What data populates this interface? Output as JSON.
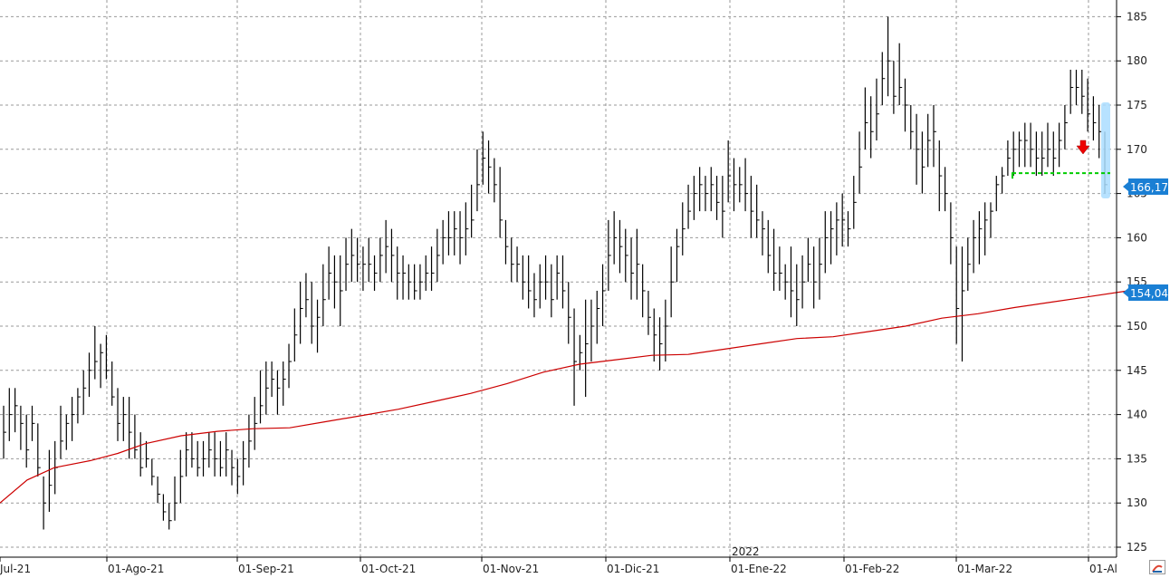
{
  "chart_data": {
    "type": "ohlc",
    "title": "",
    "xlabel": "",
    "ylabel": "",
    "ylim": [
      123.5,
      188
    ],
    "y_ticks": [
      125,
      130,
      135,
      140,
      145,
      150,
      155,
      160,
      165,
      170,
      175,
      180,
      185
    ],
    "x_tick_labels": [
      "-Jul-21",
      "01-Ago-21",
      "01-Sep-21",
      "01-Oct-21",
      "01-Nov-21",
      "01-Dic-21",
      "01-Ene-22",
      "01-Feb-22",
      "01-Mar-22",
      "01-Al"
    ],
    "year_label": "2022",
    "grid": true,
    "price_label": "166,17",
    "ma_label": "154,04",
    "last_price": 166.17,
    "ma_last": 154.04,
    "support_level": 167.3,
    "colors": {
      "bars": "#000000",
      "moving_average": "#cc0000",
      "support_line": "#00cc00",
      "label_bg": "#1a7fd4",
      "highlight": "#aaddff",
      "arrow": "#ee0000",
      "grid": "#999999"
    },
    "bars": [
      [
        141,
        135,
        138
      ],
      [
        143,
        137,
        140
      ],
      [
        143,
        138,
        141
      ],
      [
        141,
        136,
        139
      ],
      [
        140,
        134,
        136
      ],
      [
        141,
        137,
        139
      ],
      [
        139,
        133,
        134
      ],
      [
        133,
        127,
        130
      ],
      [
        136,
        129,
        132
      ],
      [
        137,
        131,
        134
      ],
      [
        141,
        135,
        137
      ],
      [
        140,
        136,
        139
      ],
      [
        142,
        137,
        140
      ],
      [
        143,
        139,
        142
      ],
      [
        145,
        140,
        143
      ],
      [
        147,
        142,
        145
      ],
      [
        150,
        144,
        146
      ],
      [
        148,
        143,
        147
      ],
      [
        149,
        144,
        145
      ],
      [
        146,
        141,
        142
      ],
      [
        143,
        137,
        139
      ],
      [
        142,
        137,
        140
      ],
      [
        142,
        135,
        138
      ],
      [
        140,
        135,
        136
      ],
      [
        138,
        133,
        134
      ],
      [
        137,
        134,
        135
      ],
      [
        135,
        132,
        133
      ],
      [
        133,
        130,
        131
      ],
      [
        131,
        128,
        129
      ],
      [
        130,
        127,
        128
      ],
      [
        133,
        128,
        130
      ],
      [
        136,
        130,
        133
      ],
      [
        138,
        133,
        136
      ],
      [
        138,
        134,
        135
      ],
      [
        137,
        133,
        134
      ],
      [
        137,
        133,
        135
      ],
      [
        138,
        134,
        136
      ],
      [
        138,
        133,
        135
      ],
      [
        137,
        133,
        134
      ],
      [
        138,
        133,
        136
      ],
      [
        136,
        132,
        134
      ],
      [
        135,
        131,
        133
      ],
      [
        137,
        132,
        135
      ],
      [
        140,
        134,
        137
      ],
      [
        142,
        136,
        139
      ],
      [
        145,
        139,
        141
      ],
      [
        146,
        140,
        143
      ],
      [
        146,
        142,
        144
      ],
      [
        145,
        140,
        143
      ],
      [
        146,
        141,
        144
      ],
      [
        148,
        143,
        146
      ],
      [
        152,
        146,
        149
      ],
      [
        155,
        148,
        152
      ],
      [
        156,
        151,
        153
      ],
      [
        155,
        148,
        150
      ],
      [
        153,
        147,
        151
      ],
      [
        157,
        150,
        153
      ],
      [
        159,
        153,
        156
      ],
      [
        158,
        152,
        155
      ],
      [
        158,
        150,
        154
      ],
      [
        160,
        154,
        157
      ],
      [
        161,
        155,
        158
      ],
      [
        160,
        155,
        157
      ],
      [
        159,
        154,
        157
      ],
      [
        160,
        155,
        157
      ],
      [
        158,
        154,
        156
      ],
      [
        160,
        155,
        158
      ],
      [
        162,
        156,
        159
      ],
      [
        161,
        155,
        158
      ],
      [
        159,
        153,
        156
      ],
      [
        158,
        153,
        156
      ],
      [
        157,
        153,
        155
      ],
      [
        157,
        153,
        154
      ],
      [
        157,
        153,
        155
      ],
      [
        158,
        154,
        156
      ],
      [
        159,
        154,
        156
      ],
      [
        161,
        155,
        158
      ],
      [
        162,
        157,
        160
      ],
      [
        163,
        158,
        160
      ],
      [
        163,
        158,
        161
      ],
      [
        163,
        157,
        160
      ],
      [
        164,
        158,
        161
      ],
      [
        166,
        160,
        162
      ],
      [
        170,
        163,
        166
      ],
      [
        172,
        166,
        169
      ],
      [
        171,
        165,
        168
      ],
      [
        169,
        164,
        166
      ],
      [
        168,
        160,
        162
      ],
      [
        162,
        157,
        159
      ],
      [
        160,
        155,
        157
      ],
      [
        159,
        155,
        157
      ],
      [
        158,
        153,
        155
      ],
      [
        158,
        152,
        154
      ],
      [
        156,
        151,
        153
      ],
      [
        157,
        152,
        155
      ],
      [
        158,
        153,
        155
      ],
      [
        157,
        151,
        153
      ],
      [
        158,
        153,
        156
      ],
      [
        158,
        152,
        154
      ],
      [
        155,
        148,
        151
      ],
      [
        152,
        141,
        146
      ],
      [
        149,
        145,
        147
      ],
      [
        153,
        142,
        148
      ],
      [
        153,
        146,
        150
      ],
      [
        154,
        148,
        152
      ],
      [
        157,
        150,
        154
      ],
      [
        162,
        154,
        158
      ],
      [
        163,
        157,
        160
      ],
      [
        162,
        156,
        159
      ],
      [
        161,
        155,
        158
      ],
      [
        160,
        153,
        156
      ],
      [
        161,
        153,
        157
      ],
      [
        157,
        151,
        154
      ],
      [
        154,
        149,
        151
      ],
      [
        152,
        146,
        149
      ],
      [
        151,
        145,
        148
      ],
      [
        153,
        146,
        150
      ],
      [
        159,
        151,
        155
      ],
      [
        161,
        155,
        159
      ],
      [
        164,
        158,
        161
      ],
      [
        166,
        161,
        163
      ],
      [
        167,
        162,
        165
      ],
      [
        168,
        163,
        166
      ],
      [
        167,
        163,
        165
      ],
      [
        168,
        163,
        166
      ],
      [
        167,
        162,
        164
      ],
      [
        167,
        160,
        163
      ],
      [
        171,
        164,
        167
      ],
      [
        169,
        163,
        166
      ],
      [
        168,
        164,
        166
      ],
      [
        169,
        163,
        165
      ],
      [
        167,
        160,
        163
      ],
      [
        166,
        160,
        162
      ],
      [
        163,
        158,
        161
      ],
      [
        162,
        156,
        158
      ],
      [
        161,
        154,
        156
      ],
      [
        159,
        154,
        156
      ],
      [
        157,
        153,
        155
      ],
      [
        159,
        151,
        154
      ],
      [
        157,
        150,
        153
      ],
      [
        158,
        152,
        155
      ],
      [
        160,
        155,
        157
      ],
      [
        159,
        152,
        155
      ],
      [
        160,
        153,
        157
      ],
      [
        163,
        156,
        160
      ],
      [
        163,
        157,
        161
      ],
      [
        164,
        158,
        162
      ],
      [
        165,
        159,
        162
      ],
      [
        163,
        159,
        161
      ],
      [
        167,
        161,
        164
      ],
      [
        172,
        165,
        168
      ],
      [
        177,
        170,
        173
      ],
      [
        176,
        169,
        172
      ],
      [
        178,
        171,
        174
      ],
      [
        181,
        175,
        178
      ],
      [
        185,
        176,
        180
      ],
      [
        180,
        174,
        176
      ],
      [
        182,
        175,
        177
      ],
      [
        178,
        172,
        175
      ],
      [
        175,
        170,
        172
      ],
      [
        174,
        166,
        170
      ],
      [
        172,
        165,
        168
      ],
      [
        174,
        168,
        171
      ],
      [
        175,
        168,
        172
      ],
      [
        171,
        163,
        167
      ],
      [
        168,
        163,
        165
      ],
      [
        164,
        157,
        160
      ],
      [
        159,
        148,
        152
      ],
      [
        159,
        146,
        154
      ],
      [
        160,
        154,
        157
      ],
      [
        162,
        156,
        160
      ],
      [
        163,
        157,
        161
      ],
      [
        164,
        158,
        162
      ],
      [
        164,
        160,
        163
      ],
      [
        167,
        163,
        166
      ],
      [
        168,
        165,
        167
      ],
      [
        171,
        167,
        169
      ],
      [
        172,
        167,
        170
      ],
      [
        172,
        168,
        171
      ],
      [
        173,
        168,
        171
      ],
      [
        173,
        168,
        170
      ],
      [
        172,
        167,
        169
      ],
      [
        172,
        167,
        169
      ],
      [
        173,
        168,
        170
      ],
      [
        172,
        167,
        169
      ],
      [
        173,
        168,
        171
      ],
      [
        175,
        170,
        173
      ],
      [
        179,
        174,
        177
      ],
      [
        179,
        175,
        177
      ],
      [
        179,
        174,
        176
      ],
      [
        178,
        172,
        174
      ],
      [
        176,
        171,
        173
      ],
      [
        175,
        169,
        172
      ],
      [
        172,
        165,
        166
      ]
    ],
    "moving_average": [
      [
        0,
        130
      ],
      [
        30,
        132.6
      ],
      [
        60,
        134
      ],
      [
        100,
        134.8
      ],
      [
        130,
        135.6
      ],
      [
        160,
        136.7
      ],
      [
        200,
        137.6
      ],
      [
        240,
        138.1
      ],
      [
        280,
        138.4
      ],
      [
        320,
        138.5
      ],
      [
        360,
        139.2
      ],
      [
        400,
        139.9
      ],
      [
        440,
        140.6
      ],
      [
        480,
        141.5
      ],
      [
        520,
        142.4
      ],
      [
        560,
        143.5
      ],
      [
        600,
        144.8
      ],
      [
        640,
        145.7
      ],
      [
        680,
        146.2
      ],
      [
        720,
        146.7
      ],
      [
        760,
        146.8
      ],
      [
        800,
        147.4
      ],
      [
        840,
        148
      ],
      [
        880,
        148.6
      ],
      [
        920,
        148.8
      ],
      [
        960,
        149.4
      ],
      [
        1000,
        150
      ],
      [
        1040,
        150.9
      ],
      [
        1080,
        151.4
      ],
      [
        1120,
        152.1
      ],
      [
        1160,
        152.7
      ],
      [
        1200,
        153.3
      ],
      [
        1248,
        154.04
      ]
    ]
  }
}
